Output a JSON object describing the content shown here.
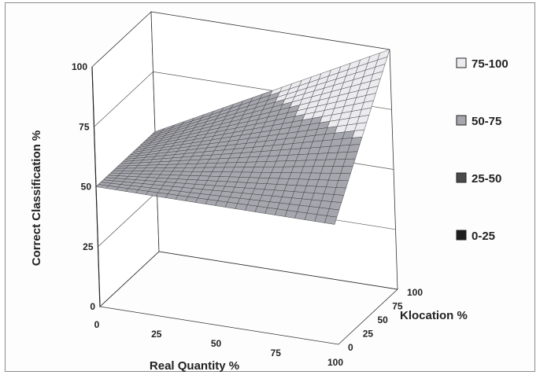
{
  "chart_data": {
    "type": "surface",
    "x_label": "Real Quantity %",
    "y_label": "Klocation %",
    "z_label": "Correct Classification %",
    "x_ticks": [
      "0",
      "25",
      "50",
      "75",
      "100"
    ],
    "y_ticks": [
      "0",
      "25",
      "50",
      "75",
      "100"
    ],
    "z_ticks": [
      "0",
      "25",
      "50",
      "75",
      "100"
    ],
    "x_range": [
      0,
      100
    ],
    "y_range": [
      0,
      100
    ],
    "z_range": [
      0,
      100
    ],
    "legend": [
      {
        "label": "75-100",
        "color": "#ececf0"
      },
      {
        "label": "50-75",
        "color": "#a6a6ae"
      },
      {
        "label": "25-50",
        "color": "#4a4a4a"
      },
      {
        "label": "0-25",
        "color": "#1e1e1e"
      }
    ],
    "legend_position": "right",
    "grid": true,
    "surface_points": [
      {
        "real_quantity": 0,
        "klocation": 0,
        "correct_classification": 50
      },
      {
        "real_quantity": 100,
        "klocation": 0,
        "correct_classification": 50
      },
      {
        "real_quantity": 0,
        "klocation": 100,
        "correct_classification": 50
      },
      {
        "real_quantity": 100,
        "klocation": 100,
        "correct_classification": 100
      }
    ]
  }
}
